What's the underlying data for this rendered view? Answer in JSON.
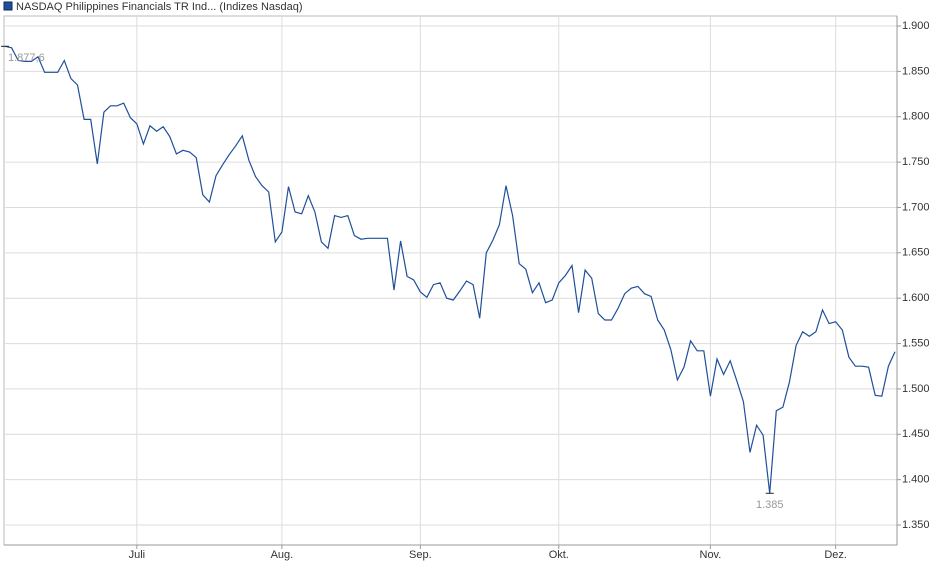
{
  "chart_data": {
    "type": "line",
    "categories": [
      null,
      null,
      null,
      null,
      null,
      null,
      null,
      null,
      null,
      null,
      null,
      null,
      null,
      null,
      null,
      null,
      null,
      null,
      null,
      null,
      "Juli",
      null,
      null,
      null,
      null,
      null,
      null,
      null,
      null,
      null,
      null,
      null,
      null,
      null,
      null,
      null,
      null,
      null,
      null,
      null,
      null,
      null,
      "Aug.",
      null,
      null,
      null,
      null,
      null,
      null,
      null,
      null,
      null,
      null,
      null,
      null,
      null,
      null,
      null,
      null,
      null,
      null,
      null,
      null,
      "Sep.",
      null,
      null,
      null,
      null,
      null,
      null,
      null,
      null,
      null,
      null,
      null,
      null,
      null,
      null,
      null,
      null,
      null,
      null,
      null,
      null,
      "Okt.",
      null,
      null,
      null,
      null,
      null,
      null,
      null,
      null,
      null,
      null,
      null,
      null,
      null,
      null,
      null,
      null,
      null,
      null,
      null,
      null,
      null,
      null,
      "Nov.",
      null,
      null,
      null,
      null,
      null,
      null,
      null,
      null,
      null,
      null,
      null,
      null,
      null,
      null,
      null,
      null,
      null,
      null,
      "Dez.",
      null,
      null,
      null,
      null,
      null,
      null,
      null,
      null,
      null
    ],
    "series": [
      {
        "name": "NASDAQ Philippines Financials TR Ind... (Indizes Nasdaq)",
        "color": "#1f4f9a",
        "values": [
          1877.6,
          1876,
          1862,
          1861,
          1861,
          1866,
          1849,
          1849,
          1849,
          1862,
          1842,
          1835,
          1797,
          1797,
          1748,
          1805,
          1812,
          1812,
          1815,
          1799,
          1792,
          1770,
          1790,
          1784,
          1789,
          1778,
          1759,
          1763,
          1761,
          1755,
          1714,
          1706,
          1735,
          1747,
          1758,
          1768,
          1779,
          1752,
          1734,
          1724,
          1717,
          1662,
          1673,
          1723,
          1695,
          1693,
          1713,
          1695,
          1662,
          1655,
          1691,
          1689,
          1691,
          1669,
          1665,
          1666,
          1666,
          1666,
          1666,
          1609,
          1663,
          1624,
          1620,
          1607,
          1601,
          1615,
          1617,
          1600,
          1598,
          1608,
          1619,
          1615,
          1578,
          1650,
          1664,
          1681,
          1724,
          1691,
          1638,
          1632,
          1606,
          1617,
          1595,
          1598,
          1617,
          1625,
          1636,
          1584,
          1631,
          1622,
          1583,
          1576,
          1576,
          1589,
          1605,
          1611,
          1613,
          1605,
          1602,
          1576,
          1565,
          1543,
          1510,
          1524,
          1553,
          1542,
          1542,
          1492,
          1533,
          1516,
          1531,
          1509,
          1486,
          1430,
          1460,
          1449,
          1385,
          1476,
          1480,
          1508,
          1548,
          1563,
          1558,
          1563,
          1587,
          1572,
          1574,
          1565,
          1535,
          1525,
          1525,
          1524,
          1493,
          1492,
          1525,
          1541
        ],
        "value_labels": [
          "1.877,6",
          null,
          null,
          null,
          null,
          null,
          null,
          null,
          null,
          null,
          null,
          null,
          null,
          null,
          null,
          null,
          null,
          null,
          null,
          null,
          null,
          null,
          null,
          null,
          null,
          null,
          null,
          null,
          null,
          null,
          null,
          null,
          null,
          null,
          null,
          null,
          null,
          null,
          null,
          null,
          null,
          null,
          null,
          null,
          null,
          null,
          null,
          null,
          null,
          null,
          null,
          null,
          null,
          null,
          null,
          null,
          null,
          null,
          null,
          null,
          null,
          null,
          null,
          null,
          null,
          null,
          null,
          null,
          null,
          null,
          null,
          null,
          null,
          null,
          null,
          null,
          null,
          null,
          null,
          null,
          null,
          null,
          null,
          null,
          null,
          null,
          null,
          null,
          null,
          null,
          null,
          null,
          null,
          null,
          null,
          null,
          null,
          null,
          null,
          null,
          null,
          null,
          null,
          null,
          null,
          null,
          null,
          null,
          null,
          null,
          null,
          null,
          null,
          null,
          null,
          null,
          "1.385",
          null,
          null,
          null,
          null,
          null,
          null,
          null,
          null,
          null,
          null,
          null,
          null,
          null,
          null,
          null,
          null,
          null,
          null,
          null
        ]
      }
    ],
    "ylim": [
      1328,
      1911
    ],
    "yticks": [
      {
        "value": 1350,
        "label": "1.350"
      },
      {
        "value": 1400,
        "label": "1.400"
      },
      {
        "value": 1450,
        "label": "1.450"
      },
      {
        "value": 1500,
        "label": "1.500"
      },
      {
        "value": 1550,
        "label": "1.550"
      },
      {
        "value": 1600,
        "label": "1.600"
      },
      {
        "value": 1650,
        "label": "1.650"
      },
      {
        "value": 1700,
        "label": "1.700"
      },
      {
        "value": 1750,
        "label": "1.750"
      },
      {
        "value": 1800,
        "label": "1.800"
      },
      {
        "value": 1850,
        "label": "1.850"
      },
      {
        "value": 1900,
        "label": "1.900"
      }
    ],
    "grid": true,
    "legend": "top-left"
  }
}
